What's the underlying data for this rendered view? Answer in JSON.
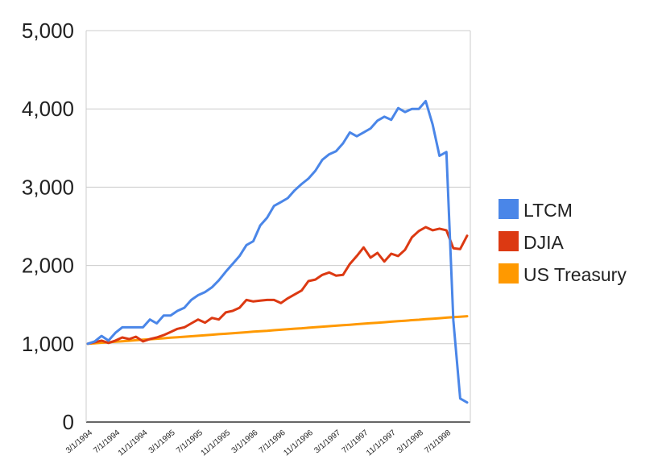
{
  "chart_data": {
    "type": "line",
    "title": "",
    "xlabel": "",
    "ylabel": "",
    "ylim": [
      0,
      5000
    ],
    "yticks": [
      0,
      1000,
      2000,
      3000,
      4000,
      5000
    ],
    "ytick_labels": [
      "0",
      "1,000",
      "2,000",
      "3,000",
      "4,000",
      "5,000"
    ],
    "grid": true,
    "legend_position": "right",
    "x_tick_labels": [
      {
        "label": "3/1/1994",
        "index": 0
      },
      {
        "label": "7/1/1994",
        "index": 4
      },
      {
        "label": "11/1/1994",
        "index": 8
      },
      {
        "label": "3/1/1995",
        "index": 12
      },
      {
        "label": "7/1/1995",
        "index": 16
      },
      {
        "label": "11/1/1995",
        "index": 20
      },
      {
        "label": "3/1/1996",
        "index": 24
      },
      {
        "label": "7/1/1996",
        "index": 28
      },
      {
        "label": "11/1/1996",
        "index": 32
      },
      {
        "label": "3/1/1997",
        "index": 36
      },
      {
        "label": "7/1/1997",
        "index": 40
      },
      {
        "label": "11/1/1997",
        "index": 44
      },
      {
        "label": "3/1/1998",
        "index": 48
      },
      {
        "label": "7/1/1998",
        "index": 52
      }
    ],
    "series": [
      {
        "name": "LTCM",
        "color": "#4a86e8",
        "values": [
          1000,
          1030,
          1100,
          1040,
          1140,
          1210,
          1210,
          1210,
          1210,
          1310,
          1260,
          1360,
          1360,
          1420,
          1460,
          1560,
          1620,
          1660,
          1720,
          1810,
          1920,
          2020,
          2120,
          2260,
          2310,
          2510,
          2610,
          2760,
          2810,
          2860,
          2960,
          3040,
          3110,
          3210,
          3350,
          3420,
          3460,
          3560,
          3700,
          3650,
          3700,
          3750,
          3850,
          3900,
          3860,
          4010,
          3960,
          4000,
          4000,
          4100,
          3800,
          3400,
          3450,
          1300,
          300,
          250
        ]
      },
      {
        "name": "DJIA",
        "color": "#dc3912",
        "values": [
          1000,
          1020,
          1040,
          1010,
          1040,
          1080,
          1060,
          1090,
          1030,
          1060,
          1080,
          1110,
          1150,
          1190,
          1210,
          1260,
          1310,
          1270,
          1330,
          1310,
          1400,
          1420,
          1460,
          1560,
          1540,
          1550,
          1560,
          1560,
          1520,
          1580,
          1630,
          1680,
          1800,
          1820,
          1880,
          1910,
          1870,
          1880,
          2020,
          2120,
          2230,
          2100,
          2160,
          2050,
          2150,
          2120,
          2200,
          2360,
          2440,
          2490,
          2450,
          2470,
          2450,
          2220,
          2210,
          2380
        ]
      },
      {
        "name": "US Treasury",
        "color": "#ff9900",
        "values": [
          1000,
          1006,
          1013,
          1019,
          1026,
          1032,
          1038,
          1045,
          1051,
          1058,
          1064,
          1070,
          1077,
          1083,
          1090,
          1096,
          1102,
          1109,
          1115,
          1122,
          1128,
          1134,
          1141,
          1147,
          1154,
          1160,
          1166,
          1173,
          1179,
          1186,
          1192,
          1198,
          1205,
          1211,
          1218,
          1224,
          1230,
          1237,
          1243,
          1250,
          1256,
          1262,
          1269,
          1275,
          1282,
          1288,
          1294,
          1301,
          1307,
          1314,
          1320,
          1326,
          1333,
          1339,
          1346,
          1352
        ]
      }
    ]
  }
}
